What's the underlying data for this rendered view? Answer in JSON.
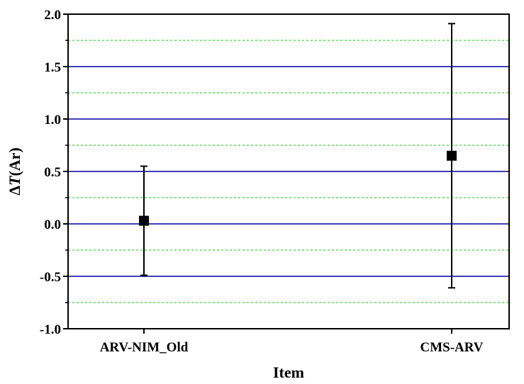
{
  "chart_data": {
    "type": "scatter",
    "title": "",
    "xlabel": "Item",
    "ylabel_prefix": "Δ",
    "ylabel_var": "T",
    "ylabel_suffix": "(Ar)",
    "categories": [
      "ARV-NIM_Old",
      "CMS-ARV"
    ],
    "values": [
      0.03,
      0.65
    ],
    "error_low": [
      -0.49,
      -0.61
    ],
    "error_high": [
      0.55,
      1.91
    ],
    "ylim": [
      -1.0,
      2.0
    ],
    "yticks": [
      "2.0",
      "1.5",
      "1.0",
      "0.5",
      "0.0",
      "-0.5",
      "-1.0"
    ],
    "ytick_values": [
      2.0,
      1.5,
      1.0,
      0.5,
      0.0,
      -0.5,
      -1.0
    ],
    "major_grid": [
      -0.5,
      0.0,
      0.5,
      1.0,
      1.5
    ],
    "minor_grid": [
      -0.75,
      -0.25,
      0.25,
      0.75,
      1.25,
      1.75
    ],
    "colors": {
      "major_grid": "#0000a0",
      "minor_grid": "#00cc00",
      "marker": "#000000",
      "axes": "#000000"
    },
    "grid": true,
    "legend": "none"
  }
}
